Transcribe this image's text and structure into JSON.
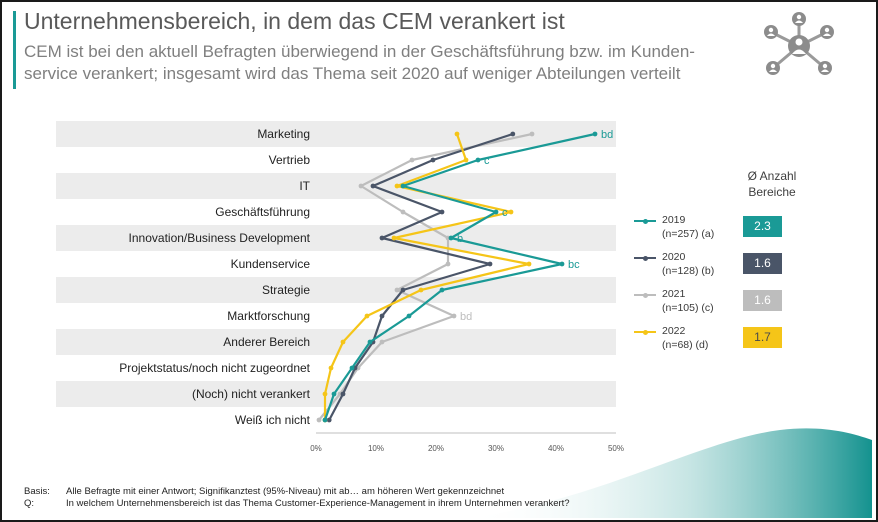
{
  "header": {
    "title": "Unternehmensbereich, in dem das CEM verankert ist",
    "subtitle": "CEM ist bei den aktuell Befragten überwiegend in der Geschäftsführung bzw. im Kunden-service verankert; insgesamt wird das Thema seit 2020 auf weniger Abteilungen verteilt",
    "accent_color": "#1a9a96",
    "icon": "network-people-icon"
  },
  "chart_data": {
    "type": "line",
    "orientation": "horizontal",
    "categories": [
      "Marketing",
      "Vertrieb",
      "IT",
      "Geschäftsführung",
      "Innovation/Business Development",
      "Kundenservice",
      "Strategie",
      "Marktforschung",
      "Anderer Bereich",
      "Projektstatus/noch nicht zugeordnet",
      "(Noch) nicht verankert",
      "Weiß ich nicht"
    ],
    "x_ticks": [
      "0%",
      "10%",
      "20%",
      "30%",
      "40%",
      "50%"
    ],
    "xlim": [
      0,
      50
    ],
    "grid": "alternating row bands",
    "series": [
      {
        "name": "2019",
        "sample": "(n=257) (a)",
        "color": "#1a9a96",
        "values": [
          46.5,
          27,
          14.5,
          30,
          22.5,
          41,
          21,
          15.5,
          9,
          6,
          3,
          1.5
        ],
        "annotations": [
          "bd",
          "c",
          "",
          "c",
          "b",
          "bc",
          "",
          "",
          "",
          "",
          "",
          ""
        ]
      },
      {
        "name": "2020",
        "sample": "(n=128) (b)",
        "color": "#4a5568",
        "values": [
          32.8,
          19.5,
          9.5,
          21,
          11,
          29,
          14.5,
          11,
          9.5,
          6.5,
          4.5,
          2.2
        ],
        "annotations": [
          "",
          "",
          "",
          "",
          "",
          "",
          "",
          "",
          "",
          "",
          "",
          ""
        ]
      },
      {
        "name": "2021",
        "sample": "(n=105) (c)",
        "color": "#bdbdbd",
        "values": [
          36,
          16,
          7.5,
          14.5,
          22,
          22,
          13.5,
          23,
          11,
          7,
          4,
          0.5
        ],
        "annotations": [
          "",
          "",
          "",
          "",
          "",
          "",
          "",
          "bd",
          "",
          "",
          "",
          ""
        ]
      },
      {
        "name": "2022",
        "sample": "(n=68) (d)",
        "color": "#f5c518",
        "values": [
          23.5,
          25,
          13.5,
          32.5,
          13,
          35.5,
          17.5,
          8.5,
          4.5,
          2.5,
          1.5,
          1.5
        ],
        "annotations": [
          "",
          "",
          "",
          "",
          "",
          "",
          "",
          "",
          "",
          "",
          "",
          ""
        ]
      }
    ],
    "avg_title": "Ø Anzahl Bereiche",
    "averages": [
      "2.3",
      "1.6",
      "1.6",
      "1.7"
    ],
    "average_colors": [
      "#1a9a96",
      "#4a5568",
      "#bdbdbd",
      "#f5c518"
    ]
  },
  "footer": {
    "basis_label": "Basis:",
    "basis_text": "Alle Befragte mit einer Antwort; Signifikanztest (95%-Niveau) mit ab… am höheren Wert gekennzeichnet",
    "q_label": "Q:",
    "q_text": "In welchem Unternehmensbereich ist das Thema Customer-Experience-Management in ihrem Unternehmen verankert?"
  }
}
